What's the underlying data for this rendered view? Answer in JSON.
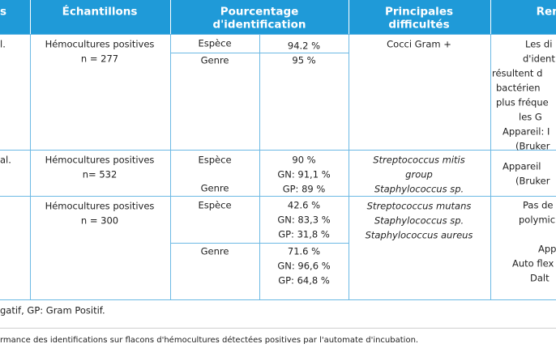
{
  "table": {
    "header": [
      [
        "s"
      ],
      [
        "Échantillons"
      ],
      [
        "Pourcentage",
        "d'identification"
      ],
      [
        "Principales",
        "difficultés"
      ],
      [
        "Rema"
      ]
    ],
    "rows": [
      {
        "ref": "l.",
        "sample": [
          "Hémocultures positives",
          "n = 277"
        ],
        "levels": [
          "Espèce",
          "Genre"
        ],
        "values": [
          [
            "94.2 %"
          ],
          [
            "95 %"
          ]
        ],
        "difficulties": [
          "Cocci Gram +"
        ],
        "remarks": [
          "Les di",
          "d'ident",
          "résultent d",
          "bactérien",
          "plus fréque",
          "les G",
          "Appareil: I",
          "(Bruker"
        ]
      },
      {
        "ref": "al.",
        "sample": [
          "Hémocultures positives",
          "n= 532"
        ],
        "levels": [
          "Espèce",
          "Genre"
        ],
        "values": [
          [
            "90 %",
            "GN: 91,1 %",
            "GP: 89 %"
          ]
        ],
        "difficulties": [
          "Streptococcus mitis",
          "group",
          "Staphylococcus sp."
        ],
        "remarks": [
          "Appareil",
          "(Bruker"
        ]
      },
      {
        "sample": [
          "Hémocultures positives",
          "n = 300"
        ],
        "levels": [
          "Espèce",
          "Genre"
        ],
        "values": [
          [
            "42.6 %",
            "GN: 83,3 %",
            "GP: 31,8 %"
          ],
          [
            "71.6 %",
            "GN: 96,6 %",
            "GP: 64,8 %"
          ]
        ],
        "difficulties": [
          "Streptococcus mutans",
          "Staphylococcus sp.",
          "Staphylococcus aureus"
        ],
        "remarks": [
          "Pas de",
          "polymic",
          "App",
          "Auto flex",
          "Dalt"
        ]
      }
    ]
  },
  "footnote": "gatif, GP: Gram Positif.",
  "caption": "rmance des identifications sur flacons d'hémocultures détectées positives par l'automate d'incubation."
}
